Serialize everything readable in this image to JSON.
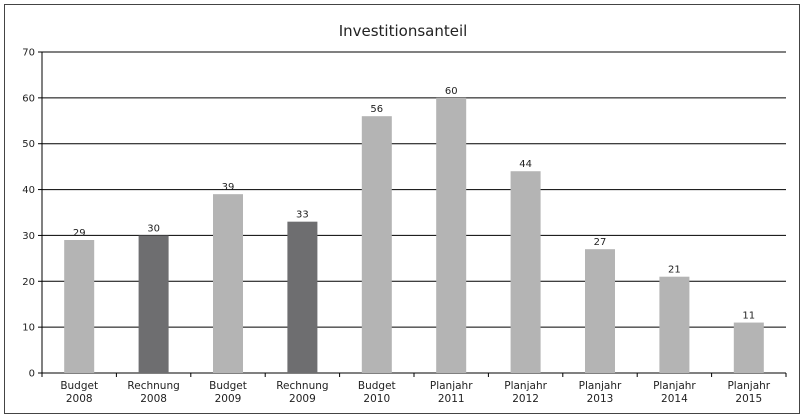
{
  "chart_data": {
    "type": "bar",
    "title": "Investitionsanteil",
    "xlabel": "",
    "ylabel": "",
    "ylim": [
      0,
      70
    ],
    "yticks": [
      0,
      10,
      20,
      30,
      40,
      50,
      60,
      70
    ],
    "grid": true,
    "legend": "none",
    "categories": [
      [
        "Budget",
        "2008"
      ],
      [
        "Rechnung",
        "2008"
      ],
      [
        "Budget",
        "2009"
      ],
      [
        "Rechnung",
        "2009"
      ],
      [
        "Budget",
        "2010"
      ],
      [
        "Planjahr",
        "2011"
      ],
      [
        "Planjahr",
        "2012"
      ],
      [
        "Planjahr",
        "2013"
      ],
      [
        "Planjahr",
        "2014"
      ],
      [
        "Planjahr",
        "2015"
      ]
    ],
    "values": [
      29,
      30,
      39,
      33,
      56,
      60,
      44,
      27,
      21,
      11
    ],
    "data_labels": [
      "29",
      "30",
      "39",
      "33",
      "56",
      "60",
      "44",
      "27",
      "21",
      "11"
    ],
    "bar_colors": [
      "#b4b4b4",
      "#6e6e70",
      "#b4b4b4",
      "#6e6e70",
      "#b4b4b4",
      "#b4b4b4",
      "#b4b4b4",
      "#b4b4b4",
      "#b4b4b4",
      "#b4b4b4"
    ],
    "colors": {
      "budget": "#b4b4b4",
      "rechnung": "#6e6e70",
      "gridline": "#000000",
      "text": "#222222"
    }
  }
}
